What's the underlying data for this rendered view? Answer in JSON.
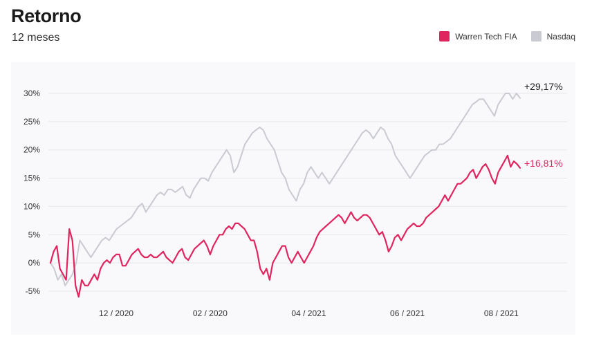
{
  "header": {
    "title": "Retorno",
    "subtitle": "12 meses"
  },
  "colors": {
    "fund": "#e0245e",
    "benchmark": "#c9cad2",
    "grid": "#e6e7ec",
    "panel": "#f9f9fb"
  },
  "chart_data": {
    "type": "line",
    "title": "Retorno",
    "subtitle": "12 meses",
    "xlabel": "",
    "ylabel": "",
    "ylim": [
      -6,
      31
    ],
    "y_ticks": [
      -5,
      0,
      5,
      10,
      15,
      20,
      25,
      30
    ],
    "y_tick_labels": [
      "-5%",
      "0%",
      "5%",
      "10%",
      "15%",
      "20%",
      "25%",
      "30%"
    ],
    "x_tick_labels": [
      "12 / 2020",
      "02 / 2020",
      "04 / 2021",
      "06 / 2021",
      "08 / 2021"
    ],
    "x_tick_positions": [
      0.14,
      0.34,
      0.55,
      0.76,
      0.96
    ],
    "grid": true,
    "legend_position": "top-right",
    "end_labels": {
      "benchmark": "+29,17%",
      "fund": "+16,81%"
    },
    "series": [
      {
        "name": "Warren Tech FIA",
        "color": "#e0245e",
        "values": [
          0,
          2,
          3,
          -1,
          -2,
          -3,
          6,
          4,
          -4,
          -6,
          -3,
          -4,
          -4,
          -3,
          -2,
          -3,
          -1,
          0,
          0.5,
          0,
          1,
          1.5,
          1.5,
          -0.5,
          -0.5,
          0.5,
          1.5,
          2,
          2.5,
          1.5,
          1,
          1,
          1.5,
          1,
          1,
          1.5,
          2,
          1,
          0.5,
          0,
          1,
          2,
          2.5,
          1,
          0.5,
          1.5,
          2.5,
          3,
          3.5,
          4,
          3,
          1.5,
          3,
          4,
          5,
          5,
          6,
          6.5,
          6,
          7,
          7,
          6.5,
          6,
          5,
          4,
          4,
          2,
          -1,
          -2,
          -1,
          -3,
          0,
          1,
          2,
          3,
          3,
          1,
          0,
          1,
          2,
          1,
          0,
          1,
          2,
          3,
          4.5,
          5.5,
          6,
          6.5,
          7,
          7.5,
          8,
          8.5,
          8,
          7,
          8,
          9,
          8,
          7.5,
          8,
          8.5,
          8.5,
          8,
          7,
          6,
          5,
          5.5,
          4,
          2,
          3,
          4.5,
          5,
          4,
          5,
          6,
          6.5,
          7,
          6.5,
          6.5,
          7,
          8,
          8.5,
          9,
          9.5,
          10,
          11,
          12,
          11,
          12,
          13,
          14,
          14,
          14.5,
          15,
          16,
          16.5,
          15,
          16,
          17,
          17.5,
          16.5,
          15,
          14,
          16,
          17,
          18,
          19,
          17,
          18,
          17.5,
          16.81
        ]
      },
      {
        "name": "Nasdaq",
        "color": "#c9cad2",
        "values": [
          0,
          -1,
          -3,
          -2,
          -4,
          -3,
          -2,
          0,
          4,
          3,
          2,
          1,
          2,
          3,
          4,
          4.5,
          4,
          5,
          6,
          6.5,
          7,
          7.5,
          8,
          9,
          10,
          10.5,
          9,
          10,
          11,
          12,
          12.5,
          12,
          13,
          13,
          12.5,
          13,
          13.5,
          12,
          11.5,
          13,
          14,
          15,
          15,
          14.5,
          16,
          17,
          18,
          19,
          20,
          19,
          16,
          17,
          19,
          21,
          22,
          23,
          23.5,
          24,
          23.5,
          22,
          21,
          20,
          18,
          16,
          15,
          13,
          12,
          11,
          13,
          14,
          16,
          17,
          16,
          15,
          16,
          15,
          14,
          15,
          16,
          17,
          18,
          19,
          20,
          21,
          22,
          23,
          23.5,
          23,
          22,
          23,
          24,
          23.5,
          22,
          21,
          19,
          18,
          17,
          16,
          15,
          16,
          17,
          18,
          19,
          19.5,
          20,
          20,
          21,
          21,
          21.5,
          22,
          23,
          24,
          25,
          26,
          27,
          28,
          28.5,
          29,
          29,
          28,
          27,
          26,
          28,
          29,
          30,
          30,
          29,
          30,
          29.17
        ]
      }
    ]
  }
}
